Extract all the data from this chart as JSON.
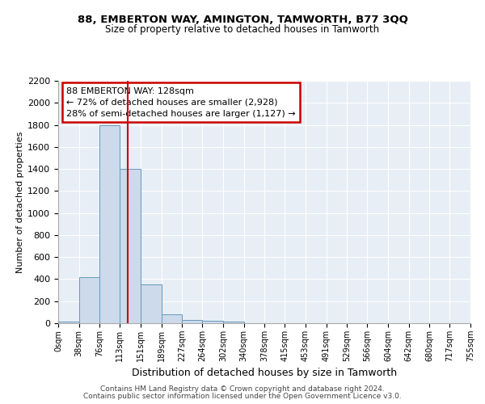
{
  "title1": "88, EMBERTON WAY, AMINGTON, TAMWORTH, B77 3QQ",
  "title2": "Size of property relative to detached houses in Tamworth",
  "xlabel": "Distribution of detached houses by size in Tamworth",
  "ylabel": "Number of detached properties",
  "bar_color": "#ccdaeb",
  "bar_edge_color": "#6699bb",
  "bin_edges": [
    0,
    38,
    76,
    113,
    151,
    189,
    227,
    264,
    302,
    340,
    378,
    415,
    453,
    491,
    529,
    566,
    604,
    642,
    680,
    717,
    755
  ],
  "bar_heights": [
    15,
    420,
    1800,
    1400,
    350,
    80,
    30,
    25,
    15,
    0,
    0,
    0,
    0,
    0,
    0,
    0,
    0,
    0,
    0,
    0
  ],
  "property_size": 128,
  "vline_color": "#cc0000",
  "annotation_line1": "88 EMBERTON WAY: 128sqm",
  "annotation_line2": "← 72% of detached houses are smaller (2,928)",
  "annotation_line3": "28% of semi-detached houses are larger (1,127) →",
  "annotation_box_color": "#cc0000",
  "ylim": [
    0,
    2200
  ],
  "yticks": [
    0,
    200,
    400,
    600,
    800,
    1000,
    1200,
    1400,
    1600,
    1800,
    2000,
    2200
  ],
  "tick_labels": [
    "0sqm",
    "38sqm",
    "76sqm",
    "113sqm",
    "151sqm",
    "189sqm",
    "227sqm",
    "264sqm",
    "302sqm",
    "340sqm",
    "378sqm",
    "415sqm",
    "453sqm",
    "491sqm",
    "529sqm",
    "566sqm",
    "604sqm",
    "642sqm",
    "680sqm",
    "717sqm",
    "755sqm"
  ],
  "footer1": "Contains HM Land Registry data © Crown copyright and database right 2024.",
  "footer2": "Contains public sector information licensed under the Open Government Licence v3.0.",
  "background_color": "#ffffff",
  "plot_bg_color": "#e8eef5",
  "grid_color": "#ffffff"
}
